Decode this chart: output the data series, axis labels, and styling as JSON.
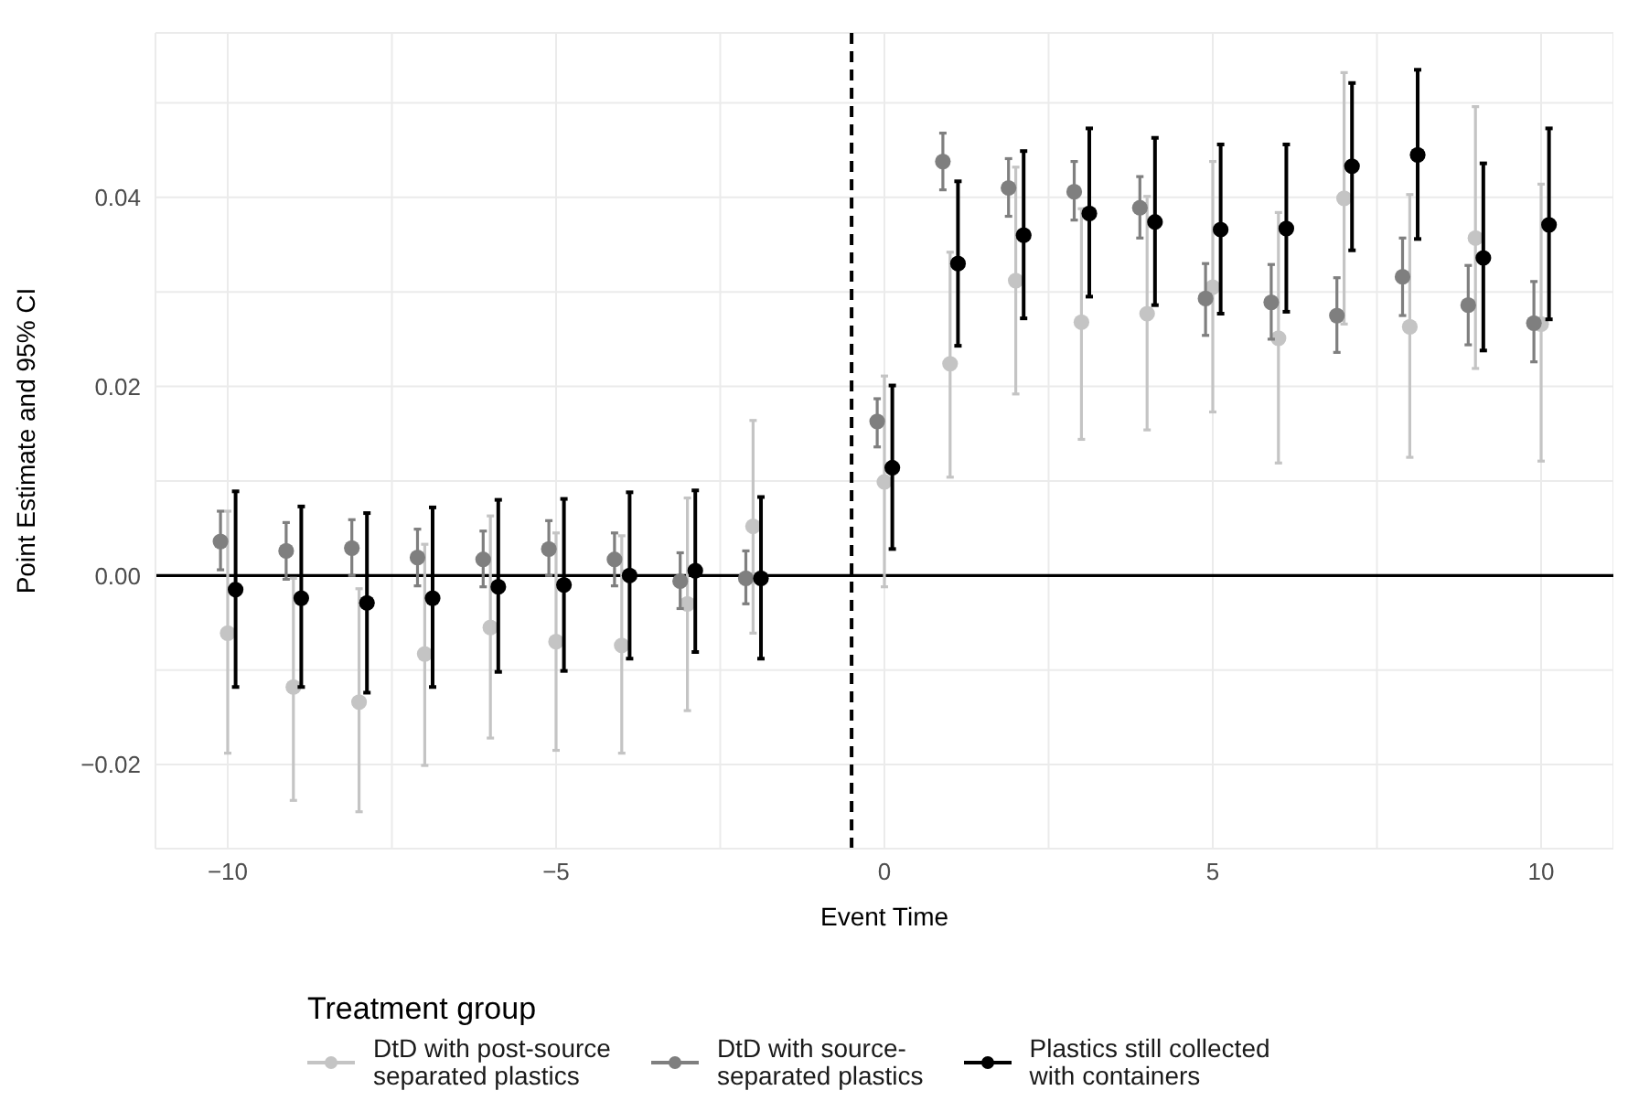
{
  "chart_data": {
    "type": "scatter",
    "xlabel": "Event Time",
    "ylabel": "Point Estimate and 95% CI",
    "legend_title": "Treatment group",
    "legend": "bottom",
    "grid": true,
    "marker": "circle",
    "x": [
      -10,
      -9,
      -8,
      -7,
      -6,
      -5,
      -4,
      -3,
      -2,
      0,
      1,
      2,
      3,
      4,
      5,
      6,
      7,
      8,
      9,
      10
    ],
    "xlim": [
      -11.1,
      11.1
    ],
    "xticks": [
      {
        "value": -10,
        "label": "−10"
      },
      {
        "value": -7.5,
        "label": null
      },
      {
        "value": -5,
        "label": "−5"
      },
      {
        "value": -2.5,
        "label": null
      },
      0,
      {
        "value": 2.5,
        "label": null
      },
      5,
      {
        "value": 7.5,
        "label": null
      },
      10
    ],
    "ylim": [
      -0.0289,
      0.0574
    ],
    "yticks": [
      {
        "value": -0.02,
        "label": "−0.02"
      },
      {
        "value": -0.01,
        "label": null
      },
      {
        "value": 0,
        "label": "0.00"
      },
      {
        "value": 0.01,
        "label": null
      },
      0.02,
      {
        "value": 0.03,
        "label": null
      },
      0.04,
      {
        "value": 0.05,
        "label": null
      }
    ],
    "ref_lines": [
      {
        "axis": "y",
        "value": 0,
        "color": "#000000",
        "line_style": "solid"
      },
      {
        "axis": "x",
        "value": -0.5,
        "color": "#000000",
        "line_style": "dashed"
      }
    ],
    "series": [
      {
        "name": "DtD with post-source\nseparated plastics",
        "color": "#c4c4c4",
        "values": [
          -0.0061,
          -0.0118,
          -0.0134,
          -0.0083,
          -0.0055,
          -0.007,
          -0.0074,
          -0.003,
          0.0052,
          0.0099,
          0.0224,
          0.0312,
          0.0268,
          0.0277,
          0.0305,
          0.0251,
          0.0399,
          0.0263,
          0.0357,
          0.0266
        ],
        "errors": [
          [
            -0.0188,
            0.0068
          ],
          [
            -0.0238,
            -0.0003
          ],
          [
            -0.025,
            -0.0014
          ],
          [
            -0.0201,
            0.0033
          ],
          [
            -0.0172,
            0.0063
          ],
          [
            -0.0185,
            0.0045
          ],
          [
            -0.0188,
            0.0042
          ],
          [
            -0.0143,
            0.0082
          ],
          [
            -0.0061,
            0.0164
          ],
          [
            -0.0012,
            0.0211
          ],
          [
            0.0104,
            0.0342
          ],
          [
            0.0192,
            0.0432
          ],
          [
            0.0144,
            0.0388
          ],
          [
            0.0154,
            0.0401
          ],
          [
            0.0173,
            0.0438
          ],
          [
            0.0119,
            0.0384
          ],
          [
            0.0266,
            0.0532
          ],
          [
            0.0125,
            0.0403
          ],
          [
            0.0219,
            0.0496
          ],
          [
            0.0121,
            0.0414
          ]
        ]
      },
      {
        "name": "DtD with source-\nseparated plastics",
        "color": "#7f7f7f",
        "x": [
          -10.11,
          -9.11,
          -8.11,
          -7.11,
          -6.11,
          -5.11,
          -4.11,
          -3.11,
          -2.11,
          -0.11,
          0.89,
          1.89,
          2.89,
          3.89,
          4.89,
          5.89,
          6.89,
          7.89,
          8.89,
          9.89
        ],
        "values": [
          0.0036,
          0.0026,
          0.0029,
          0.0019,
          0.0017,
          0.0028,
          0.0017,
          -0.0006,
          -0.0003,
          0.0163,
          0.0438,
          0.041,
          0.0406,
          0.0389,
          0.0293,
          0.0289,
          0.0275,
          0.0316,
          0.0286,
          0.0267
        ],
        "errors": [
          [
            0.0006,
            0.0068
          ],
          [
            -0.0004,
            0.0056
          ],
          [
            0,
            0.0059
          ],
          [
            -0.0011,
            0.0049
          ],
          [
            -0.0012,
            0.0047
          ],
          [
            0,
            0.0058
          ],
          [
            -0.0011,
            0.0045
          ],
          [
            -0.0035,
            0.0024
          ],
          [
            -0.003,
            0.0026
          ],
          [
            0.0136,
            0.0187
          ],
          [
            0.0408,
            0.0468
          ],
          [
            0.038,
            0.0441
          ],
          [
            0.0376,
            0.0438
          ],
          [
            0.0357,
            0.0422
          ],
          [
            0.0254,
            0.033
          ],
          [
            0.025,
            0.0329
          ],
          [
            0.0236,
            0.0315
          ],
          [
            0.0275,
            0.0357
          ],
          [
            0.0244,
            0.0328
          ],
          [
            0.0226,
            0.0311
          ]
        ]
      },
      {
        "name": "Plastics still collected\nwith containers",
        "color": "#000000",
        "x": [
          -9.88,
          -8.88,
          -7.88,
          -6.88,
          -5.88,
          -4.88,
          -3.88,
          -2.88,
          -1.88,
          0.12,
          1.12,
          2.12,
          3.12,
          4.12,
          5.12,
          6.12,
          7.12,
          8.12,
          9.12,
          10.12
        ],
        "values": [
          -0.0015,
          -0.0024,
          -0.0029,
          -0.0024,
          -0.0012,
          -0.001,
          0,
          0.0005,
          -0.0003,
          0.0114,
          0.033,
          0.036,
          0.0383,
          0.0374,
          0.0366,
          0.0367,
          0.0433,
          0.0445,
          0.0336,
          0.0371
        ],
        "errors": [
          [
            -0.0118,
            0.0089
          ],
          [
            -0.0118,
            0.0073
          ],
          [
            -0.0124,
            0.0066
          ],
          [
            -0.0118,
            0.0072
          ],
          [
            -0.0102,
            0.008
          ],
          [
            -0.0101,
            0.0081
          ],
          [
            -0.0088,
            0.0088
          ],
          [
            -0.0081,
            0.009
          ],
          [
            -0.0088,
            0.0083
          ],
          [
            0.0028,
            0.0201
          ],
          [
            0.0243,
            0.0417
          ],
          [
            0.0272,
            0.0449
          ],
          [
            0.0295,
            0.0473
          ],
          [
            0.0286,
            0.0463
          ],
          [
            0.0277,
            0.0456
          ],
          [
            0.0279,
            0.0456
          ],
          [
            0.0344,
            0.0521
          ],
          [
            0.0356,
            0.0535
          ],
          [
            0.0238,
            0.0436
          ],
          [
            0.0271,
            0.0473
          ]
        ]
      }
    ]
  }
}
